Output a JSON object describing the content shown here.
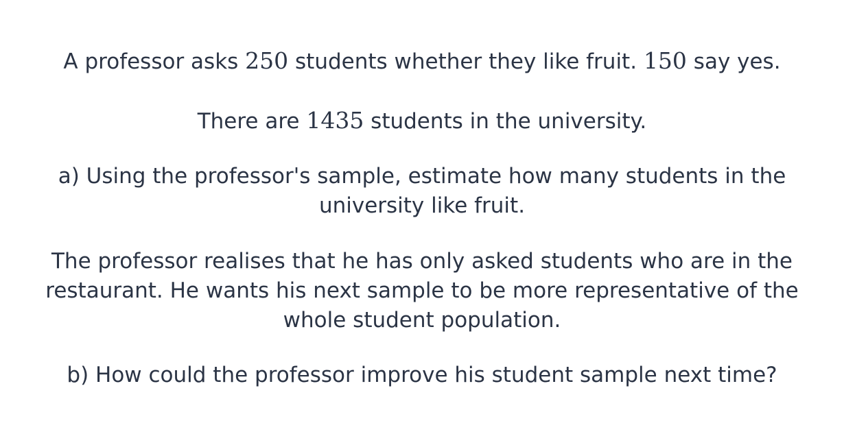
{
  "question": {
    "line1": {
      "text_a": "A professor asks ",
      "num_a": "250",
      "text_b": " students whether they like fruit. ",
      "num_b": "150",
      "text_c": " say yes."
    },
    "line2": {
      "text_a": "There are ",
      "num_a": "1435",
      "text_b": " students in the university."
    },
    "part_a": "a) Using the professor's sample, estimate how many students in the university like fruit.",
    "context": "The professor realises that he has only asked students who are in the restaurant. He wants his next sample to be more representative of the whole student population.",
    "part_b": "b) How could the professor improve his student sample next time?"
  }
}
